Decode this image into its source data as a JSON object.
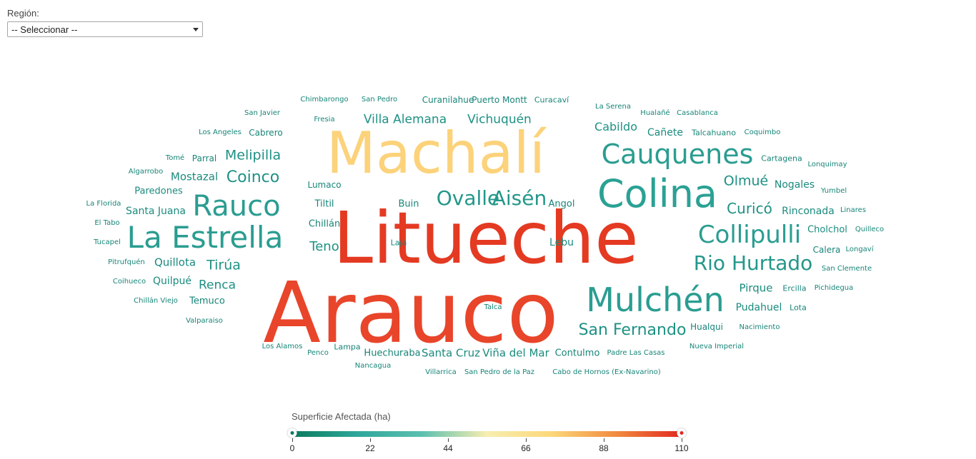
{
  "filter": {
    "label": "Región:",
    "selected": "-- Seleccionar --"
  },
  "legend": {
    "title": "Superficie Afectada (ha)",
    "min": 0,
    "max": 110,
    "ticks": [
      "0",
      "22",
      "44",
      "66",
      "88",
      "110"
    ],
    "gradient": [
      "#0b7a5e",
      "#2fa79b",
      "#5cc0b0",
      "#f7eeb0",
      "#fcd77a",
      "#f18a3f",
      "#e2281f"
    ],
    "handle_colors": [
      "#0b7a5e",
      "#e2281f"
    ]
  },
  "cloud": {
    "words": [
      {
        "text": "Arauco",
        "color": "#e8452a"
      },
      {
        "text": "Litueche",
        "color": "#e43a22"
      },
      {
        "text": "Machalí",
        "color": "#fcd27a"
      },
      {
        "text": "Colina",
        "color": "#2aa194"
      },
      {
        "text": "Mulchén",
        "color": "#2a9d91"
      },
      {
        "text": "La Estrella",
        "color": "#2a9d91"
      },
      {
        "text": "Cauquenes",
        "color": "#2a9d91"
      },
      {
        "text": "Rauco",
        "color": "#2a9d91"
      },
      {
        "text": "Collipulli",
        "color": "#2a9d91"
      },
      {
        "text": "Ovalle",
        "color": "#23978a"
      },
      {
        "text": "Aisén",
        "color": "#23978a"
      },
      {
        "text": "Rio Hurtado",
        "color": "#23978a"
      },
      {
        "text": "San Fernando",
        "color": "#1e9184"
      },
      {
        "text": "Coinco",
        "color": "#1e9184"
      },
      {
        "text": "Curicó",
        "color": "#1e9184"
      },
      {
        "text": "Olmué",
        "color": "#1e9184"
      },
      {
        "text": "Melipilla",
        "color": "#1e9184"
      },
      {
        "text": "Villa Alemana",
        "color": "#1e9184"
      },
      {
        "text": "Vichuquén",
        "color": "#1e9184"
      },
      {
        "text": "Cabildo",
        "color": "#1e9184"
      },
      {
        "text": "Tirúa",
        "color": "#1e9184"
      },
      {
        "text": "Renca",
        "color": "#1e9184"
      },
      {
        "text": "Teno",
        "color": "#1e9184"
      },
      {
        "text": "Quillota",
        "color": "#1a8b7e"
      },
      {
        "text": "Mostazal",
        "color": "#1a8b7e"
      },
      {
        "text": "Pirque",
        "color": "#1a8b7e"
      },
      {
        "text": "Nogales",
        "color": "#1a8b7e"
      },
      {
        "text": "Rinconada",
        "color": "#1a8b7e"
      },
      {
        "text": "Cholchol",
        "color": "#1a8b7e"
      },
      {
        "text": "Pudahuel",
        "color": "#1a8b7e"
      },
      {
        "text": "Santa Cruz",
        "color": "#1a8b7e"
      },
      {
        "text": "Viña del Mar",
        "color": "#1a8b7e"
      },
      {
        "text": "Quilpué",
        "color": "#1a8b7e"
      },
      {
        "text": "Santa Juana",
        "color": "#1a8b7e"
      },
      {
        "text": "Paredones",
        "color": "#1a8b7e"
      },
      {
        "text": "Cañete",
        "color": "#1a8b7e"
      },
      {
        "text": "Lebu",
        "color": "#1a8b7e"
      },
      {
        "text": "Contulmo",
        "color": "#178578"
      },
      {
        "text": "Huechuraba",
        "color": "#178578"
      },
      {
        "text": "Parral",
        "color": "#178578"
      },
      {
        "text": "Temuco",
        "color": "#178578"
      },
      {
        "text": "Hualqui",
        "color": "#178578"
      },
      {
        "text": "Calera",
        "color": "#178578"
      },
      {
        "text": "Ercilla",
        "color": "#178578"
      },
      {
        "text": "Chillán",
        "color": "#178578"
      },
      {
        "text": "Lumaco",
        "color": "#178578"
      },
      {
        "text": "Tiltil",
        "color": "#178578"
      },
      {
        "text": "Buin",
        "color": "#178578"
      },
      {
        "text": "Angol",
        "color": "#178578"
      },
      {
        "text": "Cabrero",
        "color": "#178578"
      },
      {
        "text": "Talcahuano",
        "color": "#178578"
      },
      {
        "text": "Cartagena",
        "color": "#178578"
      },
      {
        "text": "Lota",
        "color": "#178578"
      },
      {
        "text": "Curanilahue",
        "color": "#178578"
      },
      {
        "text": "Puerto Montt",
        "color": "#178578"
      },
      {
        "text": "Curacaví",
        "color": "#178578"
      },
      {
        "text": "Chimbarongo",
        "color": "#178578"
      },
      {
        "text": "San Pedro",
        "color": "#178578"
      },
      {
        "text": "San Javier",
        "color": "#178578"
      },
      {
        "text": "Fresia",
        "color": "#178578"
      },
      {
        "text": "La Serena",
        "color": "#178578"
      },
      {
        "text": "Hualañé",
        "color": "#178578"
      },
      {
        "text": "Casablanca",
        "color": "#178578"
      },
      {
        "text": "Los Angeles",
        "color": "#178578"
      },
      {
        "text": "Coquimbo",
        "color": "#178578"
      },
      {
        "text": "Tomé",
        "color": "#178578"
      },
      {
        "text": "Algarrobo",
        "color": "#178578"
      },
      {
        "text": "Lonquimay",
        "color": "#178578"
      },
      {
        "text": "Yumbel",
        "color": "#178578"
      },
      {
        "text": "La Florida",
        "color": "#178578"
      },
      {
        "text": "Linares",
        "color": "#178578"
      },
      {
        "text": "El Tabo",
        "color": "#178578"
      },
      {
        "text": "Quilleco",
        "color": "#178578"
      },
      {
        "text": "Tucapel",
        "color": "#178578"
      },
      {
        "text": "Laja",
        "color": "#178578"
      },
      {
        "text": "Longaví",
        "color": "#178578"
      },
      {
        "text": "Pitrufquén",
        "color": "#178578"
      },
      {
        "text": "San Clemente",
        "color": "#178578"
      },
      {
        "text": "Coihueco",
        "color": "#178578"
      },
      {
        "text": "Pichidegua",
        "color": "#178578"
      },
      {
        "text": "Chillán Viejo",
        "color": "#178578"
      },
      {
        "text": "Talca",
        "color": "#178578"
      },
      {
        "text": "Nacimiento",
        "color": "#178578"
      },
      {
        "text": "Valparaiso",
        "color": "#178578"
      },
      {
        "text": "Los Alamos",
        "color": "#178578"
      },
      {
        "text": "Penco",
        "color": "#178578"
      },
      {
        "text": "Lampa",
        "color": "#178578"
      },
      {
        "text": "Nancagua",
        "color": "#178578"
      },
      {
        "text": "Padre Las Casas",
        "color": "#178578"
      },
      {
        "text": "Nueva Imperial",
        "color": "#178578"
      },
      {
        "text": "Villarrica",
        "color": "#178578"
      },
      {
        "text": "San Pedro de la Paz",
        "color": "#178578"
      },
      {
        "text": "Cabo de Hornos (Ex-Navarino)",
        "color": "#178578"
      }
    ]
  }
}
